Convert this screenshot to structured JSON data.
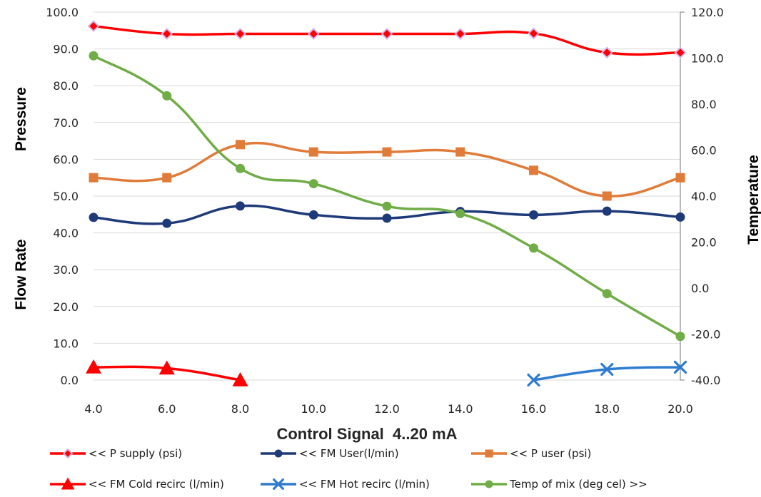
{
  "chart_data": {
    "type": "line",
    "xlabel": "Control Signal  4..20 mA",
    "ylabel_left_top": "Pressure",
    "ylabel_left_bottom": "Flow Rate",
    "ylabel_right": "Temperature",
    "x": [
      4,
      6,
      8,
      10,
      12,
      14,
      16,
      18,
      20
    ],
    "x_ticks": [
      "4.0",
      "6.0",
      "8.0",
      "10.0",
      "12.0",
      "14.0",
      "16.0",
      "18.0",
      "20.0"
    ],
    "ylim_left": [
      0,
      100
    ],
    "y_ticks_left": [
      "0.0",
      "10.0",
      "20.0",
      "30.0",
      "40.0",
      "50.0",
      "60.0",
      "70.0",
      "80.0",
      "90.0",
      "100.0"
    ],
    "ylim_right": [
      -40,
      120
    ],
    "y_ticks_right": [
      "-40.0",
      "-20.0",
      "0.0",
      "20.0",
      "40.0",
      "60.0",
      "80.0",
      "100.0",
      "120.0"
    ],
    "grid": "horizontal",
    "legend_position": "bottom",
    "series": [
      {
        "name": "<< P supply (psi)",
        "axis": "left",
        "color": "#ff0000",
        "marker": "diamond",
        "x": [
          4,
          6,
          8,
          10,
          12,
          14,
          16,
          18,
          20
        ],
        "values": [
          96.2,
          94.1,
          94.1,
          94.1,
          94.1,
          94.1,
          94.2,
          89.0,
          89.0
        ]
      },
      {
        "name": "<< FM User(l/min)",
        "axis": "left",
        "color": "#1f3a78",
        "marker": "circle",
        "x": [
          4,
          6,
          8,
          10,
          12,
          14,
          16,
          18,
          20
        ],
        "values": [
          44.2,
          42.6,
          47.3,
          44.9,
          44.0,
          45.8,
          44.9,
          45.9,
          44.3
        ]
      },
      {
        "name": "<< P user (psi)",
        "axis": "left",
        "color": "#e07b39",
        "marker": "square",
        "x": [
          4,
          6,
          8,
          10,
          12,
          14,
          16,
          18,
          20
        ],
        "values": [
          55.0,
          55.0,
          64.0,
          62.0,
          62.0,
          62.0,
          57.0,
          50.0,
          55.0
        ]
      },
      {
        "name": "<< FM Cold recirc (l/min)",
        "axis": "left",
        "color": "#ff0000",
        "marker": "triangle",
        "x": [
          4,
          6,
          8
        ],
        "values": [
          3.5,
          3.2,
          0.0
        ]
      },
      {
        "name": "<< FM Hot recirc (l/min)",
        "axis": "left",
        "color": "#2f7bd0",
        "marker": "x",
        "x": [
          16,
          18,
          20
        ],
        "values": [
          0.0,
          2.9,
          3.5
        ]
      },
      {
        "name": "Temp of mix (deg cel) >>",
        "axis": "right",
        "color": "#70ad47",
        "marker": "circle",
        "x": [
          4,
          6,
          8,
          10,
          12,
          14,
          16,
          18,
          20
        ],
        "values": [
          101.0,
          83.6,
          52.0,
          45.4,
          35.6,
          32.4,
          17.4,
          -2.4,
          -21.0
        ]
      }
    ]
  }
}
